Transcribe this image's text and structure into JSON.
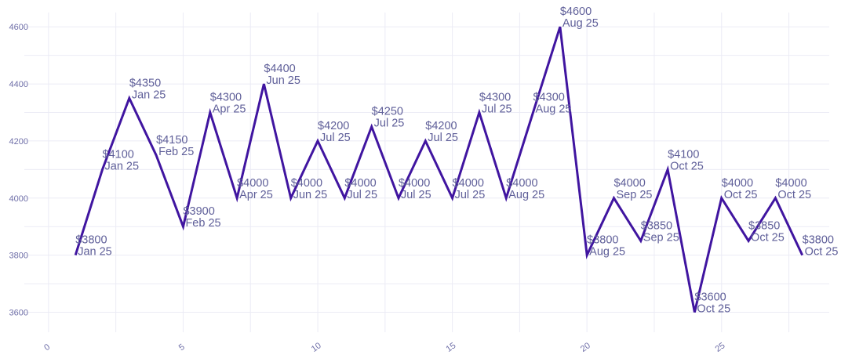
{
  "chart_data": {
    "type": "line",
    "title": "",
    "xlabel": "",
    "ylabel": "",
    "xlim": [
      -0.9,
      29.0
    ],
    "ylim": [
      3530,
      4650
    ],
    "x_ticks": [
      0,
      5,
      10,
      15,
      20,
      25
    ],
    "y_ticks": [
      3600,
      3800,
      4000,
      4200,
      4400,
      4600
    ],
    "grid": true,
    "legend": "none",
    "colors": {
      "line": "#4015a0",
      "labels": "#5f5f99",
      "ticks": "#6f6fa8",
      "grid": "#ebebf5"
    },
    "series": [
      {
        "x": [
          1,
          2,
          3,
          4,
          5,
          6,
          7,
          8,
          9,
          10,
          11,
          12,
          13,
          14,
          15,
          16,
          17,
          18,
          19,
          20,
          21,
          22,
          23,
          24,
          25,
          26,
          27,
          28
        ],
        "values": [
          3800,
          4100,
          4350,
          4150,
          3900,
          4300,
          4000,
          4400,
          4000,
          4200,
          4000,
          4250,
          4000,
          4200,
          4000,
          4300,
          4000,
          4300,
          4600,
          3800,
          4000,
          3850,
          4100,
          3600,
          4000,
          3850,
          4000,
          3800
        ],
        "data_labels": [
          "$3800",
          "$4100",
          "$4350",
          "$4150",
          "$3900",
          "$4300",
          "$4000",
          "$4400",
          "$4000",
          "$4200",
          "$4000",
          "$4250",
          "$4000",
          "$4200",
          "$4000",
          "$4300",
          "$4000",
          "$4300",
          "$4600",
          "$3800",
          "$4000",
          "$3850",
          "$4100",
          "$3600",
          "$4000",
          "$3850",
          "$4000",
          "$3800"
        ],
        "date_labels": [
          "Jan 25",
          "Jan 25",
          "Jan 25",
          "Feb 25",
          "Feb 25",
          "Apr 25",
          "Apr 25",
          "Jun 25",
          "Jun 25",
          "Jul 25",
          "Jul 25",
          "Jul 25",
          "Jul 25",
          "Jul 25",
          "Jul 25",
          "Jul 25",
          "Aug 25",
          "Aug 25",
          "Aug 25",
          "Aug 25",
          "Sep 25",
          "Sep 25",
          "Oct 25",
          "Oct 25",
          "Oct 25",
          "Oct 25",
          "Oct 25",
          "Oct 25"
        ]
      }
    ]
  }
}
